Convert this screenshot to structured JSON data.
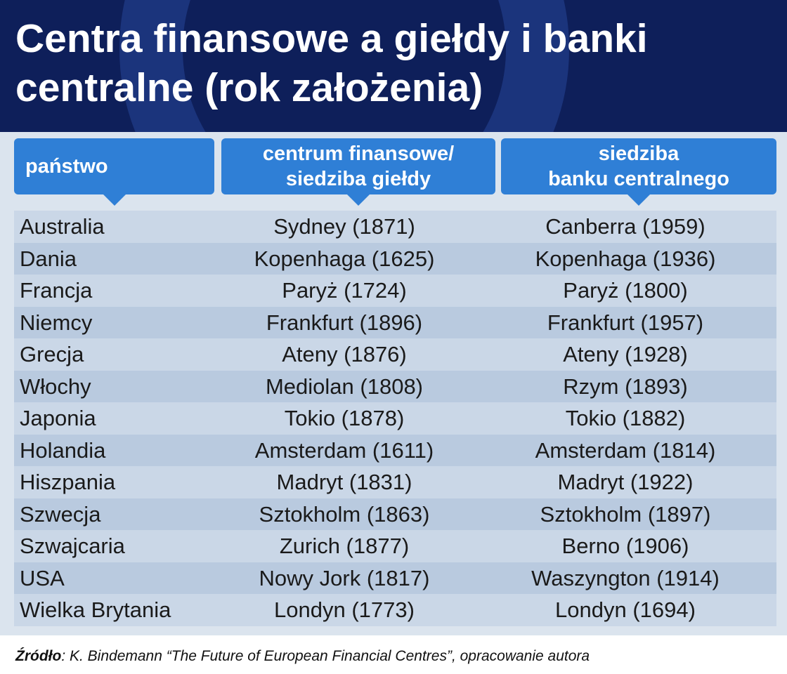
{
  "header": {
    "title": "Centra finansowe a giełdy i banki centralne (rok założenia)"
  },
  "table": {
    "headers": [
      "państwo",
      "centrum finansowe/\nsiedziba giełdy",
      "siedziba\nbanku centralnego"
    ],
    "rows": [
      [
        "Australia",
        "Sydney (1871)",
        "Canberra (1959)"
      ],
      [
        "Dania",
        "Kopenhaga (1625)",
        "Kopenhaga (1936)"
      ],
      [
        "Francja",
        "Paryż (1724)",
        "Paryż (1800)"
      ],
      [
        "Niemcy",
        "Frankfurt (1896)",
        "Frankfurt (1957)"
      ],
      [
        "Grecja",
        "Ateny (1876)",
        "Ateny (1928)"
      ],
      [
        "Włochy",
        "Mediolan (1808)",
        "Rzym (1893)"
      ],
      [
        "Japonia",
        "Tokio (1878)",
        "Tokio (1882)"
      ],
      [
        "Holandia",
        "Amsterdam (1611)",
        "Amsterdam (1814)"
      ],
      [
        "Hiszpania",
        "Madryt (1831)",
        "Madryt (1922)"
      ],
      [
        "Szwecja",
        "Sztokholm (1863)",
        "Sztokholm (1897)"
      ],
      [
        "Szwajcaria",
        "Zurich (1877)",
        "Berno (1906)"
      ],
      [
        "USA",
        "Nowy Jork (1817)",
        "Waszyngton (1914)"
      ],
      [
        "Wielka Brytania",
        "Londyn (1773)",
        "Londyn (1694)"
      ]
    ]
  },
  "source": {
    "label": "Źródło",
    "text": ": K. Bindemann “The Future of European Financial Centres”, opracowanie autora"
  }
}
